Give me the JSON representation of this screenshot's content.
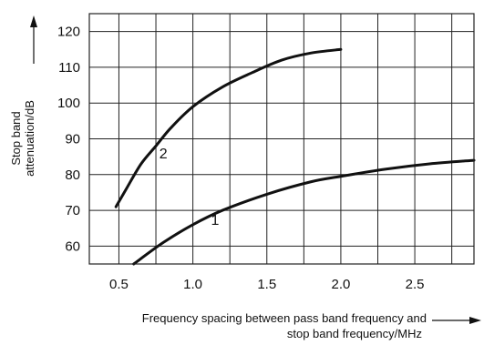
{
  "chart_data": {
    "type": "line",
    "xlabel": {
      "line1": "Frequency spacing between pass band frequency and",
      "line2": "stop band frequency/MHz"
    },
    "ylabel": {
      "line1": "Stop band",
      "line2": "attenuation/dB"
    },
    "xlim": [
      0.3,
      2.9
    ],
    "ylim": [
      55,
      125
    ],
    "x_ticks": [
      0.5,
      1.0,
      1.5,
      2.0,
      2.5
    ],
    "x_tick_labels": [
      "0.5",
      "1.0",
      "1.5",
      "2.0",
      "2.5"
    ],
    "y_ticks": [
      60,
      70,
      80,
      90,
      100,
      110,
      120
    ],
    "y_tick_labels": [
      "60",
      "70",
      "80",
      "90",
      "100",
      "110",
      "120"
    ],
    "grid": true,
    "series": [
      {
        "name": "1",
        "x": [
          0.6,
          0.8,
          1.0,
          1.2,
          1.5,
          1.8,
          2.0,
          2.3,
          2.6,
          2.9
        ],
        "y": [
          55.0,
          61.0,
          66.0,
          70.0,
          74.5,
          78.0,
          79.5,
          81.5,
          83.0,
          84.0
        ]
      },
      {
        "name": "2",
        "x": [
          0.48,
          0.55,
          0.65,
          0.75,
          0.85,
          1.0,
          1.2,
          1.4,
          1.6,
          1.8,
          2.0
        ],
        "y": [
          71.0,
          76.0,
          83.0,
          88.0,
          93.0,
          99.0,
          104.5,
          108.5,
          112.0,
          114.0,
          115.0
        ]
      }
    ],
    "annotations": [
      {
        "text": "1",
        "x": 1.15,
        "y": 66
      },
      {
        "text": "2",
        "x": 0.8,
        "y": 84.5
      }
    ]
  }
}
